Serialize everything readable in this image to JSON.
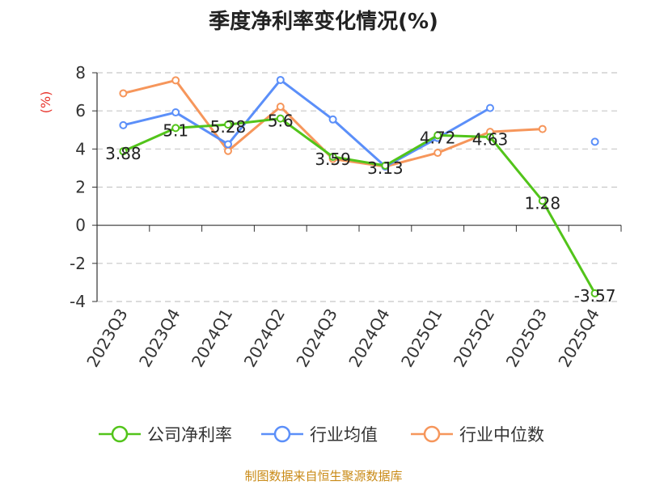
{
  "chart_data": {
    "type": "line",
    "title": "季度净利率变化情况(%)",
    "ylabel": "(%)",
    "categories": [
      "2023Q3",
      "2023Q4",
      "2024Q1",
      "2024Q2",
      "2024Q3",
      "2024Q4",
      "2025Q1",
      "2025Q2",
      "2025Q3",
      "2025Q4"
    ],
    "ylim": [
      -4,
      8
    ],
    "yticks": [
      -4,
      -2,
      0,
      2,
      4,
      6,
      8
    ],
    "grid": true,
    "legend_position": "bottom",
    "series": [
      {
        "name": "公司净利率",
        "color": "#52c41a",
        "values": [
          3.88,
          5.1,
          5.28,
          5.6,
          3.59,
          3.13,
          4.72,
          4.63,
          1.28,
          -3.57
        ],
        "labels": [
          "3.88",
          "5.1",
          "5.28",
          "5.6",
          "3.59",
          "3.13",
          "4.72",
          "4.63",
          "1.28",
          "-3.57"
        ]
      },
      {
        "name": "行业均值",
        "color": "#5b8ff9",
        "values": [
          5.25,
          5.92,
          4.25,
          7.62,
          5.55,
          3.08,
          4.58,
          6.15,
          null,
          4.38
        ]
      },
      {
        "name": "行业中位数",
        "color": "#f6965b",
        "values": [
          6.92,
          7.6,
          3.9,
          6.22,
          3.48,
          3.08,
          3.8,
          4.9,
          5.05,
          null
        ]
      }
    ]
  },
  "source": "制图数据来自恒生聚源数据库"
}
